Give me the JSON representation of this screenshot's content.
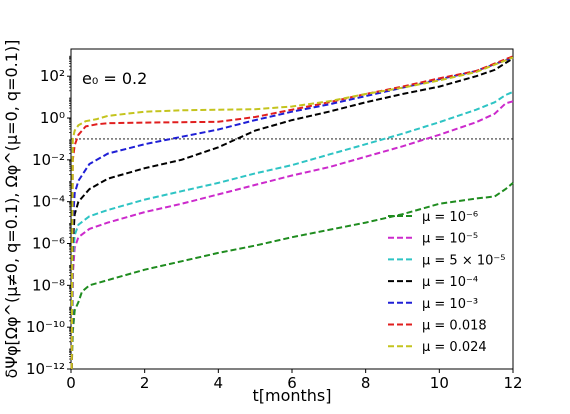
{
  "chart_data": {
    "type": "line",
    "annotation": "e₀ = 0.2",
    "xlabel": "t[months]",
    "ylabel": "δΨφ[Ωφ^(μ≠0, q=0.1), Ωφ^(μ=0, q=0.1)]",
    "xlim": [
      0,
      12
    ],
    "ylim_log10": [
      -12,
      3.3
    ],
    "y_scale": "log",
    "grid": false,
    "legend_position": "lower-right",
    "x_ticks": [
      "0",
      "2",
      "4",
      "6",
      "8",
      "10",
      "12"
    ],
    "y_ticks": [
      "10⁻¹²",
      "10⁻¹⁰",
      "10⁻⁸",
      "10⁻⁶",
      "10⁻⁴",
      "10⁻²",
      "10⁰",
      "10²"
    ],
    "reference_line": {
      "y": 0.1,
      "style": "dotted"
    },
    "series": [
      {
        "name": "μ = 10⁻⁶",
        "color": "#1f8c1f",
        "x": [
          0.02,
          0.05,
          0.1,
          0.2,
          0.3,
          0.5,
          0.8,
          1,
          2,
          3,
          4,
          5,
          6,
          7,
          8,
          9,
          10,
          11,
          11.5,
          11.8,
          12
        ],
        "log10_y": [
          -12,
          -10.2,
          -9.2,
          -8.8,
          -8.3,
          -8.0,
          -7.85,
          -7.75,
          -7.25,
          -6.85,
          -6.45,
          -6.1,
          -5.7,
          -5.35,
          -5.0,
          -4.6,
          -4.1,
          -3.85,
          -3.75,
          -3.4,
          -3.1
        ]
      },
      {
        "name": "μ = 10⁻⁵",
        "color": "#cc2acc",
        "x": [
          0.02,
          0.05,
          0.1,
          0.2,
          0.5,
          1,
          2,
          3,
          4,
          5,
          6,
          7,
          8,
          9,
          10,
          11,
          11.5,
          11.8,
          12
        ],
        "log10_y": [
          -12,
          -7.5,
          -6.2,
          -5.7,
          -5.3,
          -5.0,
          -4.5,
          -4.1,
          -3.65,
          -3.2,
          -2.75,
          -2.35,
          -1.85,
          -1.35,
          -0.8,
          -0.2,
          0.2,
          0.7,
          0.8
        ]
      },
      {
        "name": "μ = 5 × 10⁻⁵",
        "color": "#2ec4c4",
        "x": [
          0.02,
          0.05,
          0.1,
          0.2,
          0.5,
          1,
          2,
          3,
          4,
          5,
          6,
          7,
          8,
          9,
          10,
          11,
          11.5,
          11.8,
          12
        ],
        "log10_y": [
          -12,
          -6.8,
          -5.6,
          -5.1,
          -4.7,
          -4.4,
          -3.9,
          -3.5,
          -3.1,
          -2.65,
          -2.25,
          -1.75,
          -1.25,
          -0.75,
          -0.2,
          0.4,
          0.75,
          1.1,
          1.25
        ]
      },
      {
        "name": "μ = 10⁻⁴",
        "color": "#000000",
        "x": [
          0.02,
          0.05,
          0.1,
          0.2,
          0.5,
          1,
          2,
          3,
          4,
          5,
          6,
          7,
          8,
          9,
          10,
          11,
          11.5,
          12
        ],
        "log10_y": [
          -12,
          -6.0,
          -4.6,
          -4.0,
          -3.4,
          -2.9,
          -2.4,
          -2.0,
          -1.4,
          -0.6,
          -0.1,
          0.3,
          0.75,
          1.15,
          1.5,
          2.0,
          2.3,
          2.85
        ]
      },
      {
        "name": "μ = 10⁻³",
        "color": "#1f1fd6",
        "x": [
          0.02,
          0.05,
          0.1,
          0.2,
          0.5,
          1,
          2,
          3,
          4,
          5,
          6,
          7,
          8,
          9,
          10,
          11,
          12
        ],
        "log10_y": [
          -12,
          -5.0,
          -3.6,
          -3.0,
          -2.2,
          -1.7,
          -1.25,
          -0.9,
          -0.55,
          -0.1,
          0.3,
          0.65,
          1.05,
          1.45,
          1.85,
          2.25,
          2.9
        ]
      },
      {
        "name": "μ = 0.018",
        "color": "#e01e1e",
        "x": [
          0.02,
          0.05,
          0.1,
          0.2,
          0.4,
          0.7,
          1,
          2,
          3,
          4,
          5,
          6,
          7,
          8,
          9,
          10,
          11,
          11.5,
          12
        ],
        "log10_y": [
          -12,
          -2.0,
          -1.3,
          -0.8,
          -0.4,
          -0.3,
          -0.25,
          -0.22,
          -0.2,
          -0.18,
          0.05,
          0.4,
          0.75,
          1.15,
          1.5,
          1.9,
          2.25,
          2.6,
          2.95
        ]
      },
      {
        "name": "μ = 0.024",
        "color": "#c4c41e",
        "x": [
          0.02,
          0.05,
          0.1,
          0.2,
          0.4,
          0.7,
          1,
          2,
          3,
          4,
          5,
          6,
          7,
          8,
          9,
          10,
          11,
          12
        ],
        "log10_y": [
          -12,
          -1.0,
          -0.6,
          -0.35,
          -0.15,
          -0.05,
          0.1,
          0.3,
          0.37,
          0.4,
          0.42,
          0.55,
          0.8,
          1.15,
          1.45,
          1.8,
          2.2,
          2.9
        ]
      }
    ]
  }
}
